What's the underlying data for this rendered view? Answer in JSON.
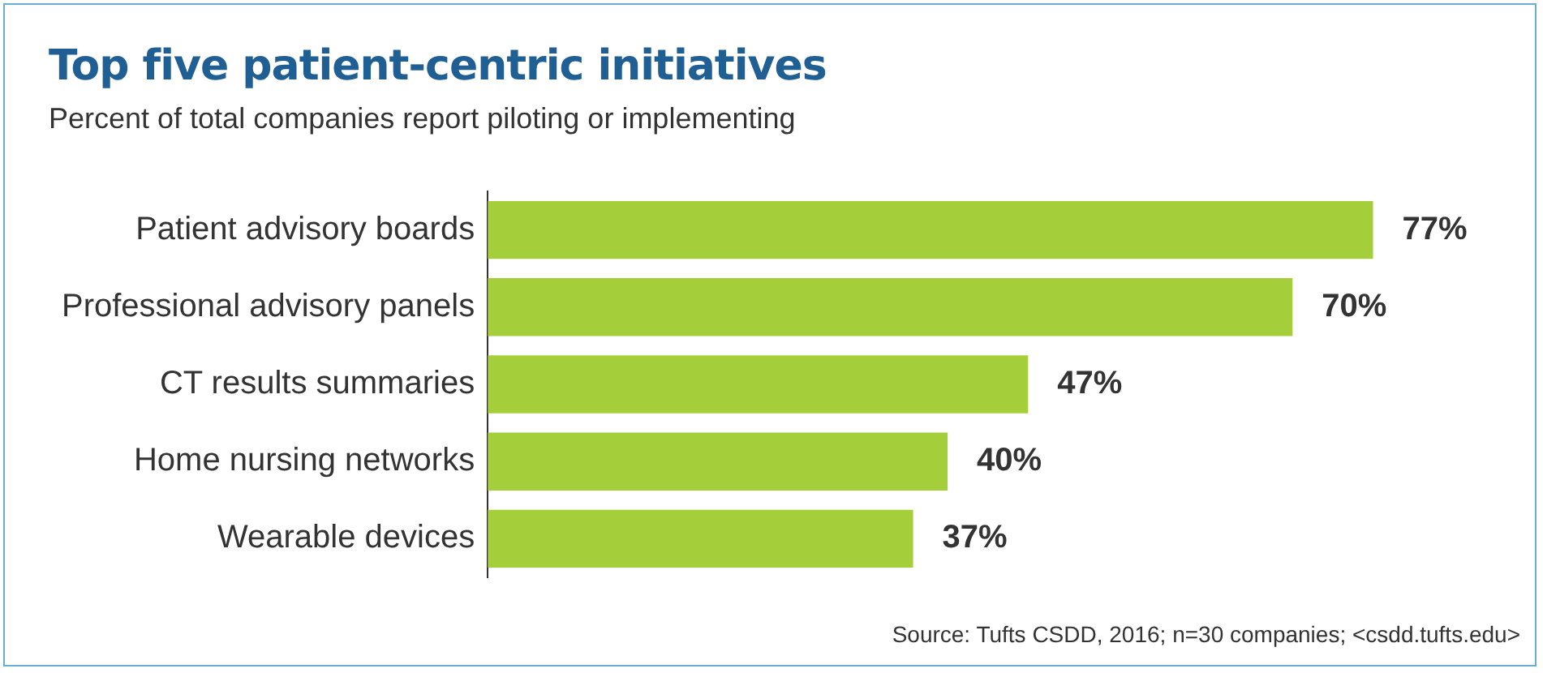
{
  "chart_data": {
    "type": "bar",
    "orientation": "horizontal",
    "title": "Top five patient-centric initiatives",
    "subtitle": "Percent of total companies report piloting or implementing",
    "categories": [
      "Patient advisory boards",
      "Professional advisory panels",
      "CT results summaries",
      "Home nursing networks",
      "Wearable devices"
    ],
    "values": [
      77,
      70,
      47,
      40,
      37
    ],
    "value_labels": [
      "77%",
      "70%",
      "47%",
      "40%",
      "37%"
    ],
    "color": "#a4cf3a",
    "grid": false,
    "legend": false,
    "tick_labels": "y",
    "annotations": [
      "Source: Tufts CSDD, 2016; n=30 companies; <csdd.tufts.edu>"
    ]
  }
}
